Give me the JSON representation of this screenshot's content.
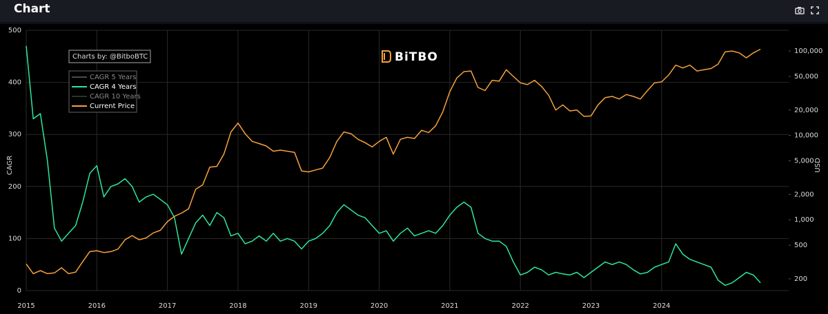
{
  "header": {
    "title": "Chart"
  },
  "chart_data": {
    "type": "line",
    "annotation": "Charts by: @BitboBTC",
    "logo": "BiTBO",
    "y_label": "CAGR",
    "y2_label": "USD",
    "x": [
      2015,
      2015.1,
      2015.2,
      2015.3,
      2015.4,
      2015.5,
      2015.6,
      2015.7,
      2015.8,
      2015.9,
      2016,
      2016.1,
      2016.2,
      2016.3,
      2016.4,
      2016.5,
      2016.6,
      2016.7,
      2016.8,
      2016.9,
      2017,
      2017.1,
      2017.2,
      2017.3,
      2017.4,
      2017.5,
      2017.6,
      2017.7,
      2017.8,
      2017.9,
      2018,
      2018.1,
      2018.2,
      2018.3,
      2018.4,
      2018.5,
      2018.6,
      2018.7,
      2018.8,
      2018.9,
      2019,
      2019.1,
      2019.2,
      2019.3,
      2019.4,
      2019.5,
      2019.6,
      2019.7,
      2019.8,
      2019.9,
      2020,
      2020.1,
      2020.2,
      2020.3,
      2020.4,
      2020.5,
      2020.6,
      2020.7,
      2020.8,
      2020.9,
      2021,
      2021.1,
      2021.2,
      2021.3,
      2021.4,
      2021.5,
      2021.6,
      2021.7,
      2021.8,
      2021.9,
      2022,
      2022.1,
      2022.2,
      2022.3,
      2022.4,
      2022.5,
      2022.6,
      2022.7,
      2022.8,
      2022.9,
      2023,
      2023.1,
      2023.2,
      2023.3,
      2023.4,
      2023.5,
      2023.6,
      2023.7,
      2023.8,
      2023.9,
      2024,
      2024.1,
      2024.2,
      2024.3,
      2024.4,
      2024.5,
      2024.6,
      2024.7,
      2024.8,
      2024.9,
      2025,
      2025.1,
      2025.2,
      2025.3,
      2025.4
    ],
    "series": [
      {
        "name": "CAGR 5 Years",
        "color": "#8a8a8a",
        "visible": false
      },
      {
        "name": "CAGR 4 Years",
        "color": "#2ee89a",
        "visible": true,
        "values": [
          470,
          330,
          340,
          250,
          120,
          95,
          110,
          125,
          170,
          225,
          240,
          180,
          200,
          205,
          215,
          200,
          170,
          180,
          185,
          175,
          165,
          140,
          70,
          100,
          130,
          145,
          125,
          150,
          140,
          105,
          110,
          90,
          95,
          105,
          95,
          110,
          95,
          100,
          95,
          80,
          95,
          100,
          110,
          125,
          150,
          165,
          155,
          145,
          140,
          125,
          110,
          115,
          95,
          110,
          120,
          105,
          110,
          115,
          110,
          125,
          145,
          160,
          170,
          160,
          110,
          100,
          95,
          95,
          85,
          55,
          30,
          35,
          45,
          40,
          30,
          35,
          32,
          30,
          35,
          25,
          35,
          45,
          55,
          50,
          55,
          50,
          40,
          32,
          35,
          45,
          50,
          55,
          90,
          70,
          60,
          55,
          50,
          45,
          20,
          10,
          15,
          25,
          35,
          30,
          15
        ]
      },
      {
        "name": "CAGR 10 Years",
        "color": "#3a6b55",
        "visible": false
      },
      {
        "name": "Current Price",
        "color": "#f7a23b",
        "visible": true,
        "axis": "y2",
        "values": [
          300,
          230,
          250,
          230,
          235,
          270,
          230,
          240,
          320,
          420,
          430,
          410,
          420,
          450,
          580,
          650,
          580,
          610,
          700,
          750,
          950,
          1100,
          1200,
          1350,
          2300,
          2600,
          4200,
          4300,
          6000,
          11000,
          14000,
          10500,
          8500,
          8000,
          7500,
          6500,
          6700,
          6500,
          6300,
          3800,
          3700,
          3900,
          4100,
          5500,
          8500,
          11000,
          10500,
          9000,
          8200,
          7300,
          8500,
          9500,
          6000,
          9000,
          9500,
          9200,
          11500,
          10800,
          13000,
          19000,
          33000,
          48000,
          57000,
          58000,
          37000,
          34000,
          45000,
          44000,
          60000,
          50000,
          42000,
          40000,
          45000,
          38000,
          30000,
          20000,
          23000,
          19500,
          20000,
          16800,
          17000,
          23000,
          28000,
          29000,
          27000,
          30500,
          29000,
          27000,
          34000,
          42000,
          43000,
          52000,
          68000,
          63000,
          68000,
          58000,
          60000,
          62000,
          70000,
          98000,
          100000,
          95000,
          83000,
          95000,
          105000
        ]
      }
    ],
    "xlim": [
      2015,
      2025.8
    ],
    "xticks": [
      2015,
      2016,
      2017,
      2018,
      2019,
      2020,
      2021,
      2022,
      2023,
      2024
    ],
    "ylim": [
      0,
      500
    ],
    "yticks": [
      0,
      100,
      200,
      300,
      400,
      500
    ],
    "y2lim": [
      145,
      176000
    ],
    "y2scale": "log",
    "y2ticks": [
      200,
      500,
      {
        "value": 1000,
        "label": "1,000"
      },
      {
        "value": 2000,
        "label": "2,000"
      },
      {
        "value": 5000,
        "label": "5,000"
      },
      {
        "value": 10000,
        "label": "10,000"
      },
      {
        "value": 20000,
        "label": "20,000"
      },
      {
        "value": 50000,
        "label": "50,000"
      },
      {
        "value": 100000,
        "label": "100,000"
      }
    ],
    "grid": true
  }
}
